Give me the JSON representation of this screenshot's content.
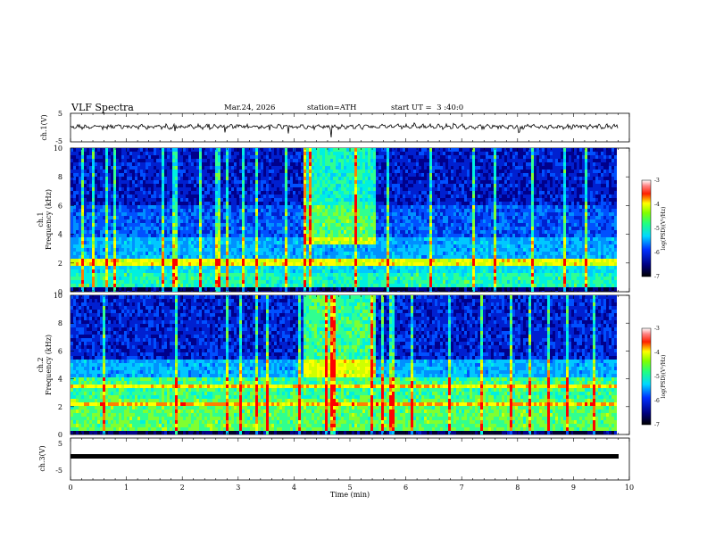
{
  "header": {
    "title": "VLF Spectra",
    "date": "Mar.24, 2026",
    "station": "station=ATH",
    "start": "start UT =  3 :40:0"
  },
  "chart_data": [
    {
      "type": "line",
      "name": "ch1-waveform",
      "ylabel": "ch.1(V)",
      "ylim": [
        -5,
        5
      ],
      "yticks": [
        "5",
        "-5"
      ],
      "xlim": [
        0,
        10
      ]
    },
    {
      "type": "heatmap",
      "name": "ch1-spectrogram",
      "ylabel_channel": "ch.1",
      "ylabel": "Frequency (kHz)",
      "ylim": [
        0,
        10
      ],
      "yticks": [
        "0",
        "2",
        "4",
        "6",
        "8",
        "10"
      ],
      "xlim": [
        0,
        10
      ],
      "colorbar": {
        "label": "log(PSD)(V²/Hz)",
        "range": [
          -7,
          -3
        ],
        "ticks": [
          "-3",
          "-4",
          "-5",
          "-6",
          "-7"
        ]
      }
    },
    {
      "type": "heatmap",
      "name": "ch2-spectrogram",
      "ylabel_channel": "ch.2",
      "ylabel": "Frequency (kHz)",
      "ylim": [
        0,
        10
      ],
      "yticks": [
        "0",
        "2",
        "4",
        "6",
        "8",
        "10"
      ],
      "xlim": [
        0,
        10
      ],
      "colorbar": {
        "label": "log(PSD)(V²/Hz)",
        "range": [
          -7,
          -3
        ],
        "ticks": [
          "-3",
          "-4",
          "-5",
          "-6",
          "-7"
        ]
      }
    },
    {
      "type": "line",
      "name": "ch3-waveform",
      "ylabel": "ch.3(V)",
      "ylim": [
        -5,
        5
      ],
      "yticks": [
        "5",
        "-5"
      ],
      "xlim": [
        0,
        10
      ]
    }
  ],
  "xaxis": {
    "label": "Time (min)",
    "ticks": [
      "0",
      "1",
      "2",
      "3",
      "4",
      "5",
      "6",
      "7",
      "8",
      "9",
      "10"
    ],
    "data_end": 9.8
  }
}
